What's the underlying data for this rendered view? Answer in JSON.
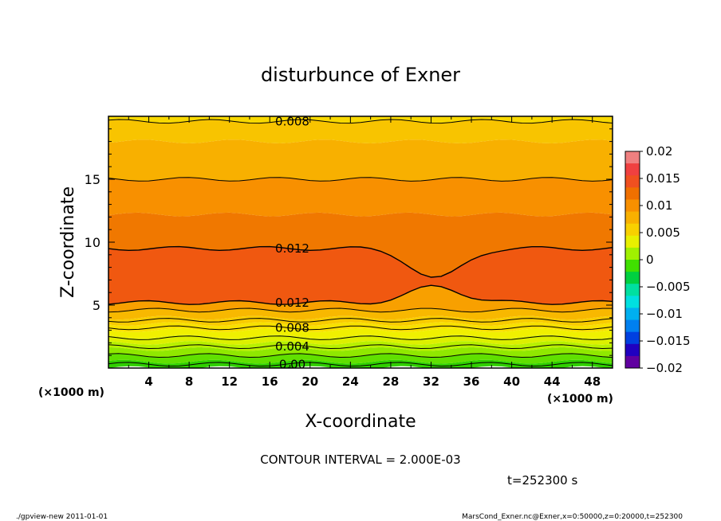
{
  "chart_data": {
    "type": "contour",
    "title": "disturbunce of Exner",
    "xlabel": "X-coordinate",
    "ylabel": "Z-coordinate",
    "x_unit": "(×1000 m)",
    "y_unit": "(×1000 m)",
    "xlim": [
      0,
      50
    ],
    "ylim": [
      0,
      20
    ],
    "xticks": [
      "4",
      "8",
      "12",
      "16",
      "20",
      "24",
      "28",
      "32",
      "36",
      "40",
      "44",
      "48"
    ],
    "yticks": [
      "5",
      "10",
      "15"
    ],
    "contour_interval_text": "CONTOUR INTERVAL = 2.000E-03",
    "time_text": "t=252300 s",
    "contour_labels": [
      {
        "text": "0.008",
        "x": 18,
        "z": 19.6
      },
      {
        "text": "0.012",
        "x": 18,
        "z": 9.5
      },
      {
        "text": "0.012",
        "x": 18,
        "z": 5.2
      },
      {
        "text": "0.008",
        "x": 18,
        "z": 3.2
      },
      {
        "text": "0.004",
        "x": 18,
        "z": 1.7
      },
      {
        "text": "0.00",
        "x": 18,
        "z": 0.3
      }
    ],
    "colorbar": {
      "labels": [
        "0.02",
        "0.015",
        "0.01",
        "0.005",
        "0",
        "−0.005",
        "−0.01",
        "−0.015",
        "−0.02"
      ],
      "colors": [
        "#f08080",
        "#f04040",
        "#f05020",
        "#f07000",
        "#f89000",
        "#f8b000",
        "#f8d000",
        "#e8f000",
        "#a0f000",
        "#40e000",
        "#00d040",
        "#00e0a0",
        "#00e0e0",
        "#00b0f0",
        "#0080f0",
        "#0040e0",
        "#2000c0",
        "#6000a0"
      ]
    },
    "bands": [
      {
        "z": 0.0,
        "value": 0.001,
        "color": "#30d000"
      },
      {
        "z": 0.5,
        "value": 0.002,
        "color": "#60e000"
      },
      {
        "z": 1.0,
        "value": 0.003,
        "color": "#90e800"
      },
      {
        "z": 1.5,
        "value": 0.004,
        "color": "#b8f000"
      },
      {
        "z": 2.0,
        "value": 0.005,
        "color": "#dcf000"
      },
      {
        "z": 2.5,
        "value": 0.006,
        "color": "#f0f000"
      },
      {
        "z": 3.0,
        "value": 0.007,
        "color": "#f8e000"
      },
      {
        "z": 3.5,
        "value": 0.008,
        "color": "#f8cc00"
      },
      {
        "z": 4.0,
        "value": 0.009,
        "color": "#f8b800"
      },
      {
        "z": 4.6,
        "value": 0.01,
        "color": "#f8a000"
      },
      {
        "z": 5.2,
        "value": 0.012,
        "color": "#f05810"
      },
      {
        "z": 9.5,
        "value": 0.011,
        "color": "#f07800"
      },
      {
        "z": 12.2,
        "value": 0.01,
        "color": "#f89000"
      },
      {
        "z": 15.0,
        "value": 0.009,
        "color": "#f8b000"
      },
      {
        "z": 18.0,
        "value": 0.008,
        "color": "#f8c400"
      },
      {
        "z": 19.6,
        "value": 0.007,
        "color": "#f8d800"
      }
    ]
  },
  "footer": {
    "left": "./gpview-new   2011-01-01",
    "right": "MarsCond_Exner.nc@Exner,x=0:50000,z=0:20000,t=252300"
  }
}
